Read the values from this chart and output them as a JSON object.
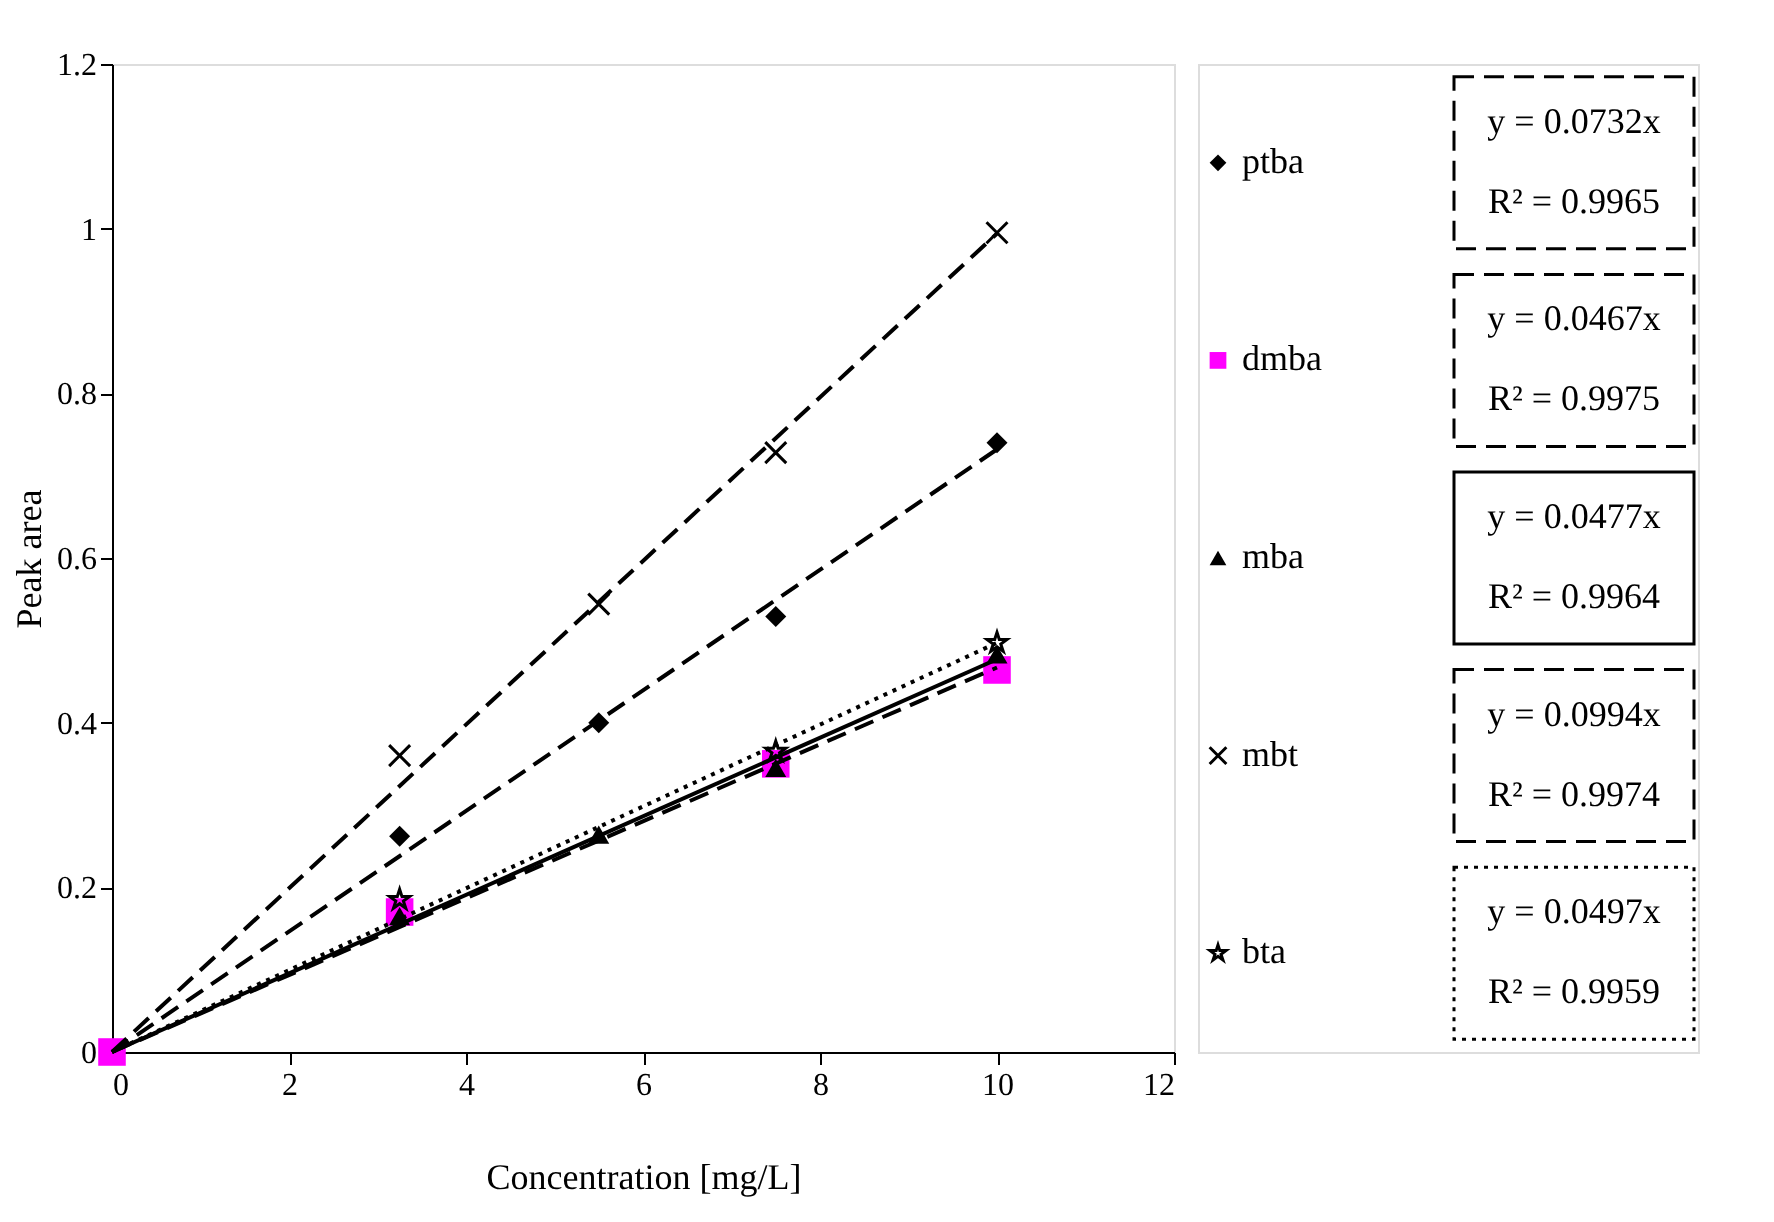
{
  "chart_data": {
    "type": "scatter",
    "xlabel": "Concentration [mg/L]",
    "ylabel": "Peak area",
    "xlim": [
      0,
      12
    ],
    "xticks": [
      0,
      2,
      4,
      6,
      8,
      10,
      12
    ],
    "ylim": [
      0,
      1.2
    ],
    "yticks": [
      0,
      0.2,
      0.4,
      0.6,
      0.8,
      1,
      1.2
    ],
    "grid": false,
    "legend": "right",
    "series": [
      {
        "name": "ptba",
        "type": "scatter",
        "marker": "diamond",
        "color": "#000000",
        "x": [
          3.25,
          5.5,
          7.5,
          10
        ],
        "values": [
          0.262,
          0.4,
          0.529,
          0.74
        ]
      },
      {
        "name": "dmba",
        "type": "scatter",
        "marker": "square",
        "color": "#ff00ff",
        "x": [
          0,
          3.25,
          7.5,
          10
        ],
        "values": [
          0,
          0.17,
          0.35,
          0.464
        ]
      },
      {
        "name": "mba",
        "type": "scatter",
        "marker": "triangle",
        "color": "#000000",
        "x": [
          3.25,
          5.5,
          7.5,
          10
        ],
        "values": [
          0.165,
          0.264,
          0.345,
          0.483
        ]
      },
      {
        "name": "mbt",
        "type": "scatter",
        "marker": "cross",
        "color": "#000000",
        "x": [
          3.25,
          5.5,
          7.5,
          10
        ],
        "values": [
          0.36,
          0.544,
          0.728,
          0.995
        ]
      },
      {
        "name": "bta",
        "type": "scatter",
        "marker": "star",
        "color": "#000000",
        "x": [
          3.25,
          7.5,
          10
        ],
        "values": [
          0.185,
          0.365,
          0.497
        ]
      },
      {
        "type": "line",
        "line_style": "dashed",
        "color": "#000000",
        "x": [
          0,
          10
        ],
        "values": [
          0,
          0.732
        ]
      },
      {
        "type": "line",
        "line_style": "dashed",
        "color": "#000000",
        "x": [
          0,
          10
        ],
        "values": [
          0,
          0.467
        ]
      },
      {
        "type": "line",
        "line_style": "solid",
        "color": "#000000",
        "x": [
          0,
          10
        ],
        "values": [
          0,
          0.477
        ]
      },
      {
        "type": "line",
        "line_style": "dashed",
        "color": "#000000",
        "x": [
          0,
          10
        ],
        "values": [
          0,
          0.994
        ]
      },
      {
        "type": "line",
        "line_style": "dotted",
        "color": "#000000",
        "x": [
          0,
          10
        ],
        "values": [
          0,
          0.497
        ]
      }
    ],
    "annotations": [
      "y = 0.0732x",
      "R² = 0.9965",
      "y = 0.0467x",
      "R² = 0.9975",
      "y = 0.0477x",
      "R² = 0.9964",
      "y = 0.0994x",
      "R² = 0.9974",
      "y = 0.0497x",
      "R² = 0.9959"
    ]
  }
}
